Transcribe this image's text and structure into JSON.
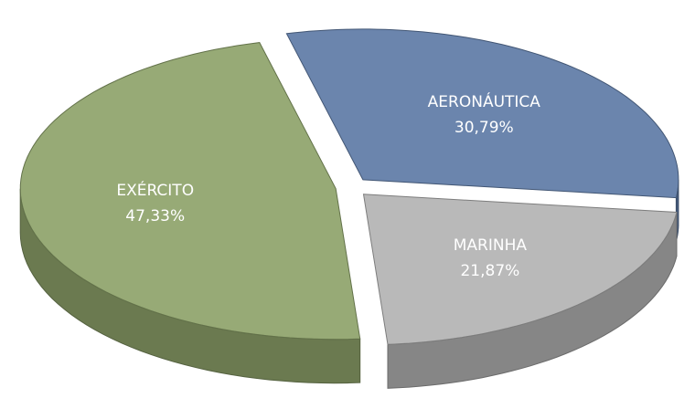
{
  "chart_data": {
    "type": "pie",
    "categories": [
      "AERONÁUTICA",
      "MARINHA",
      "EXÉRCITO"
    ],
    "values": [
      30.79,
      21.87,
      47.33
    ],
    "value_labels": [
      "30,79%",
      "21,87%",
      "47,33%"
    ],
    "colors": [
      "#5e7ba6",
      "#b3b3b3",
      "#8ea36a"
    ]
  }
}
